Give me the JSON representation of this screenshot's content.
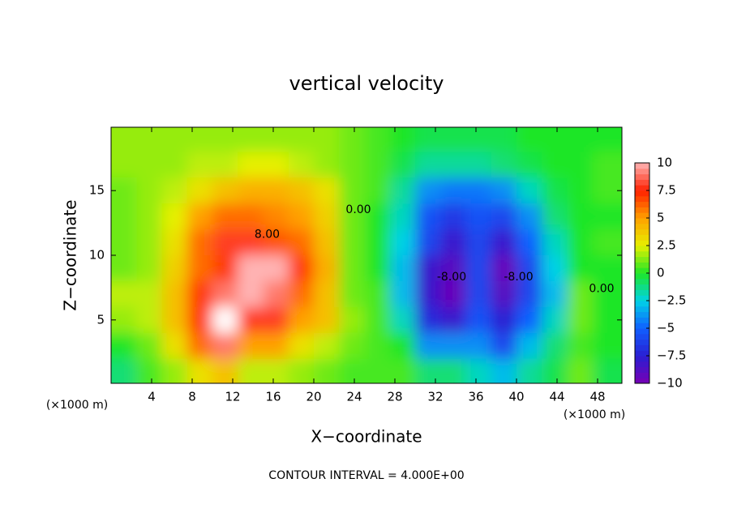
{
  "chart_data": {
    "type": "contour",
    "title": "vertical velocity",
    "x_label": "X−coordinate",
    "y_label": "Z−coordinate",
    "x_unit": "(×1000 m)",
    "y_unit": "(×1000 m)",
    "footer": "CONTOUR INTERVAL = 4.000E+00",
    "xlim": [
      0,
      50.4
    ],
    "ylim": [
      0.1,
      19.9
    ],
    "xticks": [
      4,
      8,
      12,
      16,
      20,
      24,
      28,
      32,
      36,
      40,
      44,
      48
    ],
    "yticks": [
      5,
      10,
      15
    ],
    "x": [
      1.25,
      3.75,
      6.25,
      8.75,
      11.25,
      13.75,
      16.25,
      18.75,
      21.25,
      23.75,
      26.25,
      28.75,
      31.25,
      33.75,
      36.25,
      38.75,
      41.25,
      43.75,
      46.25,
      48.75
    ],
    "z": [
      19,
      17,
      15,
      13,
      11,
      9,
      7,
      5,
      3,
      1
    ],
    "values": [
      [
        1.5,
        1.5,
        1.5,
        1.5,
        1.5,
        1.5,
        1.5,
        1.5,
        1.5,
        1,
        0.5,
        0,
        -0.5,
        -0.5,
        -0.5,
        -0.5,
        0,
        0,
        0,
        0
      ],
      [
        1.5,
        1.5,
        1.5,
        2,
        2,
        2.5,
        2.5,
        2,
        1.5,
        1,
        0.5,
        -0.5,
        -1.5,
        -1.5,
        -1.5,
        -1,
        -0.5,
        0,
        0,
        0.5
      ],
      [
        1,
        1.5,
        2,
        3,
        4,
        4.5,
        4.5,
        4,
        3,
        1,
        0.5,
        -1.5,
        -4,
        -4.5,
        -4.5,
        -4,
        -2,
        -0.5,
        0,
        0.5
      ],
      [
        1,
        1.5,
        2.5,
        5,
        6,
        6,
        5.5,
        5,
        3.5,
        1,
        0,
        -2,
        -5.5,
        -6.5,
        -5.5,
        -6,
        -4,
        -1,
        0,
        0
      ],
      [
        1,
        1.5,
        3,
        6,
        8,
        8,
        6.5,
        6,
        4,
        1,
        0,
        -2.5,
        -6,
        -8,
        -6,
        -8,
        -5,
        -2,
        0,
        0.5
      ],
      [
        1,
        1.5,
        3.5,
        6,
        7,
        10,
        10,
        7,
        4.5,
        1,
        0,
        -3,
        -8,
        -9,
        -6,
        -9.5,
        -6,
        -2.5,
        0,
        0
      ],
      [
        2,
        2,
        4,
        7,
        9,
        10,
        9,
        6,
        4,
        1,
        0.5,
        -3,
        -8,
        -9.5,
        -6,
        -9,
        -6,
        -3,
        1,
        0
      ],
      [
        1.5,
        2,
        4,
        7,
        11,
        8,
        8,
        5,
        4,
        1.5,
        0.5,
        -2,
        -7,
        -8,
        -5.5,
        -7.5,
        -5,
        -2,
        1,
        0
      ],
      [
        0,
        1,
        3,
        6,
        9,
        5,
        5,
        3,
        2,
        1,
        0.5,
        0,
        -4,
        -4,
        -4,
        -6,
        -3,
        -1,
        0.5,
        0
      ],
      [
        -1,
        0.5,
        1.5,
        3,
        4,
        2,
        2,
        1.5,
        1,
        0.5,
        0.5,
        0.5,
        -1,
        -1,
        -2,
        -3,
        -1.5,
        -0.5,
        1,
        -0.5
      ]
    ],
    "clim": [
      -10,
      10
    ],
    "colorbar_ticks": [
      10,
      7.5,
      5,
      2.5,
      0,
      {
        "value": -2.5,
        "label": "−2.5"
      },
      {
        "value": -5,
        "label": "−5"
      },
      {
        "value": -7.5,
        "label": "−7.5"
      },
      {
        "value": -10,
        "label": "−10"
      }
    ],
    "colormap": [
      {
        "value": -10,
        "color": "#7800b4"
      },
      {
        "value": -7.5,
        "color": "#2a1ed2"
      },
      {
        "value": -5,
        "color": "#1060ff"
      },
      {
        "value": -2.5,
        "color": "#00d2e6"
      },
      {
        "value": 0,
        "color": "#1ee628"
      },
      {
        "value": 2.5,
        "color": "#e6f000"
      },
      {
        "value": 5,
        "color": "#ffa000"
      },
      {
        "value": 7.5,
        "color": "#ff2000"
      },
      {
        "value": 10,
        "color": "#ffb4b4"
      }
    ],
    "over_color": "#ffffff",
    "under_color": "#ffffff",
    "contour_labels": [
      {
        "text": "8.00",
        "x": 15.4,
        "y": 11.6
      },
      {
        "text": "0.00",
        "x": 24.4,
        "y": 13.5
      },
      {
        "text": "-8.00",
        "x": 33.6,
        "y": 8.3
      },
      {
        "text": "-8.00",
        "x": 40.2,
        "y": 8.3
      },
      {
        "text": "0.00",
        "x": 48.4,
        "y": 7.4
      }
    ]
  }
}
